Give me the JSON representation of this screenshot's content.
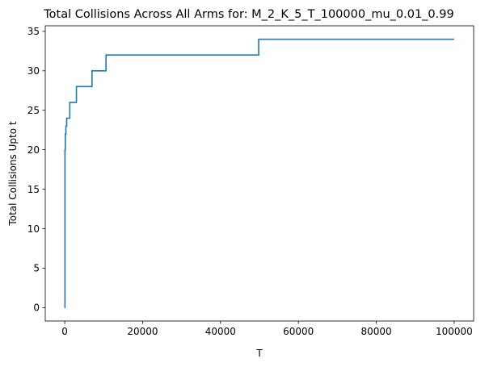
{
  "chart_data": {
    "type": "line",
    "title": "Total Collisions Across All Arms for: M_2_K_5_T_100000_mu_0.01_0.99",
    "xlabel": "T",
    "ylabel": "Total Collisions Upto t",
    "xlim": [
      -5000,
      105000
    ],
    "ylim": [
      -1.7,
      35.7
    ],
    "x_ticks": [
      0,
      20000,
      40000,
      60000,
      80000,
      100000
    ],
    "x_tick_labels": [
      "0",
      "20000",
      "40000",
      "60000",
      "80000",
      "100000"
    ],
    "y_ticks": [
      0,
      5,
      10,
      15,
      20,
      25,
      30,
      35
    ],
    "y_tick_labels": [
      "0",
      "5",
      "10",
      "15",
      "20",
      "25",
      "30",
      "35"
    ],
    "grid": false,
    "step": "post",
    "series": [
      {
        "color": "#1f77b4",
        "x": [
          0,
          60,
          150,
          300,
          500,
          800,
          1300,
          3000,
          7000,
          10600,
          49800,
          100000
        ],
        "y": [
          0,
          20,
          22,
          23,
          24,
          24,
          26,
          28,
          30,
          32,
          34,
          34
        ]
      }
    ]
  }
}
